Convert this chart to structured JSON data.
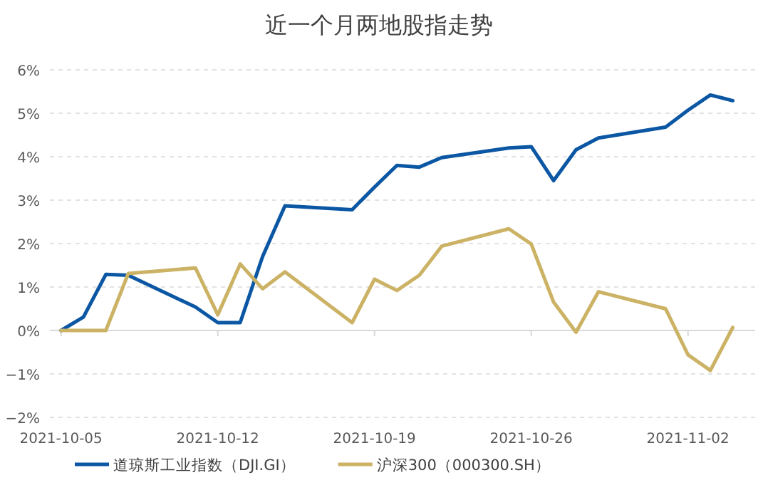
{
  "chart_data": {
    "type": "line",
    "title": "近一个月两地股指走势",
    "x": [
      "2021-10-05",
      "2021-10-06",
      "2021-10-07",
      "2021-10-08",
      "2021-10-11",
      "2021-10-12",
      "2021-10-13",
      "2021-10-14",
      "2021-10-15",
      "2021-10-18",
      "2021-10-19",
      "2021-10-20",
      "2021-10-21",
      "2021-10-22",
      "2021-10-25",
      "2021-10-26",
      "2021-10-27",
      "2021-10-28",
      "2021-10-29",
      "2021-11-01",
      "2021-11-02",
      "2021-11-03",
      "2021-11-04"
    ],
    "series": [
      {
        "name": "道琼斯工业指数（DJI.GI）",
        "color": "#0b57a4",
        "values": [
          0,
          0.31,
          1.29,
          1.27,
          0.54,
          0.18,
          0.18,
          1.7,
          2.87,
          2.78,
          3.3,
          3.8,
          3.76,
          3.98,
          4.2,
          4.23,
          3.45,
          4.16,
          4.43,
          4.68,
          5.07,
          5.42,
          5.29
        ]
      },
      {
        "name": "沪深300（000300.SH）",
        "color": "#cbb264",
        "values": [
          0,
          0,
          0,
          1.31,
          1.44,
          0.36,
          1.53,
          0.96,
          1.35,
          0.18,
          1.18,
          0.92,
          1.27,
          1.94,
          2.34,
          1.99,
          0.65,
          -0.04,
          0.89,
          0.5,
          -0.56,
          -0.92,
          0.07
        ]
      }
    ],
    "xlim": [
      "2021-10-04T12:00",
      "2021-11-05T00:00"
    ],
    "xticks": [
      "2021-10-05",
      "2021-10-12",
      "2021-10-19",
      "2021-10-26",
      "2021-11-02"
    ],
    "ylim": [
      -2,
      6
    ],
    "yticks": [
      {
        "value": -2,
        "label": "−2%"
      },
      {
        "value": -1,
        "label": "−1%"
      },
      {
        "value": 0,
        "label": "0%"
      },
      {
        "value": 1,
        "label": "1%"
      },
      {
        "value": 2,
        "label": "2%"
      },
      {
        "value": 3,
        "label": "3%"
      },
      {
        "value": 4,
        "label": "4%"
      },
      {
        "value": 5,
        "label": "5%"
      },
      {
        "value": 6,
        "label": "6%"
      }
    ],
    "grid": "y",
    "legend": "bottom"
  }
}
